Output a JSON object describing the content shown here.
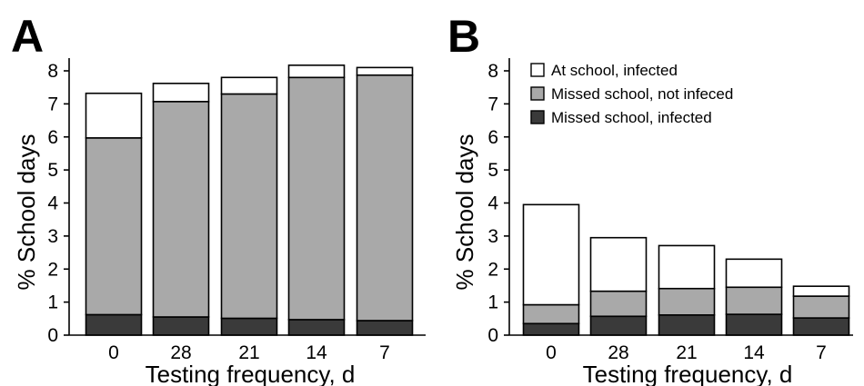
{
  "chart_data": [
    {
      "panel": "A",
      "type": "bar",
      "stacked": true,
      "categories": [
        "0",
        "28",
        "21",
        "14",
        "7"
      ],
      "xlabel": "Testing frequency, d",
      "ylabel": "% School days",
      "ylim": [
        0,
        8
      ],
      "yticks": [
        "0",
        "1",
        "2",
        "3",
        "4",
        "5",
        "6",
        "7",
        "8"
      ],
      "legend": "none",
      "grid": false,
      "series": [
        {
          "name": "Missed school, infected",
          "color": "#3a3a3a",
          "values": [
            0.62,
            0.55,
            0.51,
            0.47,
            0.44
          ]
        },
        {
          "name": "Missed school, not infeced",
          "color": "#a9a9a9",
          "values": [
            5.35,
            6.52,
            6.79,
            7.33,
            7.43
          ]
        },
        {
          "name": "At school, infected",
          "color": "#ffffff",
          "values": [
            1.35,
            0.55,
            0.5,
            0.37,
            0.23
          ]
        }
      ]
    },
    {
      "panel": "B",
      "type": "bar",
      "stacked": true,
      "categories": [
        "0",
        "28",
        "21",
        "14",
        "7"
      ],
      "xlabel": "Testing frequency, d",
      "ylabel": "% School days",
      "ylim": [
        0,
        8
      ],
      "yticks": [
        "0",
        "1",
        "2",
        "3",
        "4",
        "5",
        "6",
        "7",
        "8"
      ],
      "legend": "top-left",
      "grid": false,
      "series": [
        {
          "name": "Missed school, infected",
          "color": "#3a3a3a",
          "values": [
            0.35,
            0.57,
            0.61,
            0.63,
            0.52
          ]
        },
        {
          "name": "Missed school, not infeced",
          "color": "#a9a9a9",
          "values": [
            0.57,
            0.76,
            0.8,
            0.82,
            0.66
          ]
        },
        {
          "name": "At school, infected",
          "color": "#ffffff",
          "values": [
            3.03,
            1.62,
            1.3,
            0.85,
            0.3
          ]
        }
      ]
    }
  ]
}
